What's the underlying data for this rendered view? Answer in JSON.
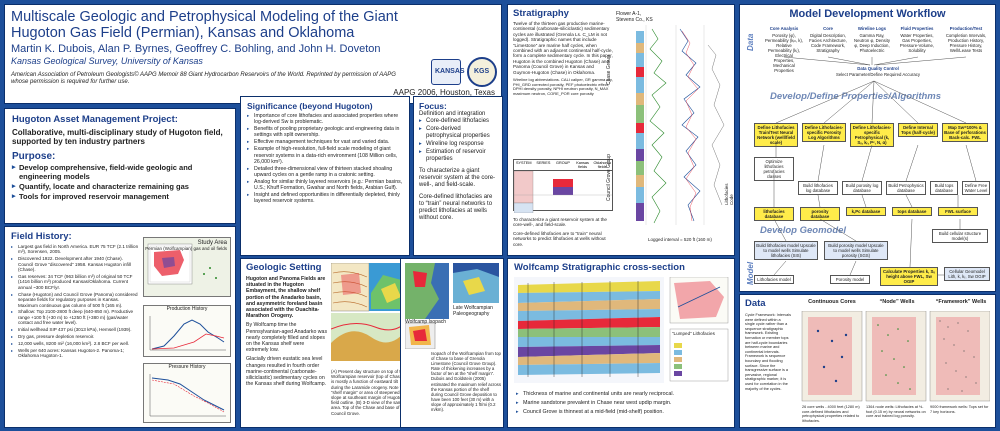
{
  "title": {
    "heading": "Multiscale Geologic and Petrophysical Modeling of the Giant Hugoton Gas Field (Permian), Kansas and Oklahoma",
    "authors": "Martin K. Dubois, Alan P. Byrnes, Geoffrey C. Bohling, and John H. Doveton",
    "institution": "Kansas Geological Survey, University of Kansas",
    "reference": "American Association of Petroleum Geologists© AAPG Memoir 88 Giant Hydrocarbon Reservoirs of the World. Reprinted by permission of AAPG whose permission is required for further use.",
    "year": "AAPG 2006, Houston, Texas",
    "logo_ks": "KANSAS",
    "logo_kgs": "KGS"
  },
  "project": {
    "heading": "Hugoton Asset Management Project:",
    "subtitle": "Collaborative, multi-disciplinary study of Hugoton field, supported by ten industry partners",
    "purpose_heading": "Purpose:",
    "purpose": [
      "Develop comprehensive, field-wide geologic and engineering models",
      "Quantify, locate and characterize remaining gas",
      "Tools for improved reservoir management"
    ]
  },
  "significance": {
    "heading": "Significance (beyond Hugoton)",
    "items": [
      "Importance of core lithofacies and associated properties where log-derived Sw is problematic.",
      "Benefits of pooling proprietary geologic and engineering data in settings with split ownership.",
      "Effective management techniques for vast and varied data.",
      "Example of high-resolution, full-field scale modeling of giant reservoir systems in a data-rich environment (108 Million cells, 26,000 km²).",
      "Detailed three-dimensional view of thirteen stacked shoaling upward cycles on a gentle ramp in a cratonic setting.",
      "Analog for similar thinly layered reservoirs (e.g.: Permian basins, U.S.; Khuff Formation, Gwahar and North fields, Arabian Gulf).",
      "Insight and defined opportunities in differentially depleted, thinly layered reservoir systems."
    ]
  },
  "focus": {
    "heading": "Focus:",
    "lead": "Definition and integration",
    "items": [
      "Core-defined lithofacies",
      "Core-derived petrophysical properties",
      "Wireline log response",
      "Estimation of reservoir properties"
    ],
    "para1": "To characterize a giant reservoir system at the core-well-, and field-scale.",
    "para2": "Core-defined lithofacies are to “train” neural networks to predict lithofacies at wells without core."
  },
  "history": {
    "heading": "Field History:",
    "items": [
      "Largest gas field in North America. EUR 75 TCF (2.1 trillion m³), Sorensen, 2005.",
      "Discovered 1922. Development after 1940 (Chase). Council Grove “discovered” 1958. Kansas Hugoton infill (Chase).",
      "Gas reserves: 34 TCF (963 billion m³) of original 50 TCF (1416 billion m³) produced Kansas/Oklahoma. Current annual ~300 BCF/yr.",
      "Chase (Hugoton) and Council Grove (Panoma) considered separate fields for regulatory purposes in Kansas. Maximum continuous gas column of 500 ft (165 m).",
      "Shallow: Top 2100-2800 ft deep (640-850 m). Productive range +100 ft (+30 m) to +1250 ft (+380 m) (gas/water contact and free water level).",
      "Initial wellhead SIP 437 psi (3013 kPa), Hemsell (1939).",
      "Dry gas, pressure depletion reservoir.",
      "12,000 wells, 8200 mi² (16,000 km²). 2.8 BCF per well.",
      "Wells per 640 acres: Kansas Hugoton-2. Panoma-1; Oklahoma Hugoton-1."
    ],
    "map_caption": "Study Area",
    "map_sub": "Permian (Wolfcampian) gas and oil fields",
    "prod_caption": "Production History",
    "press_caption": "Pressure History"
  },
  "stratigraphy": {
    "heading": "Stratigraphy",
    "para1": "Twelve of the thirteen gas productive marine-continental (carbonate-siliciclastic) sedimentary cycles are illustrated (Grenola Ls. C_LM is not logged). Stratigraphic names that include “Limestone” are marine half cycles, when combined with an adjacent continental half-cycle, form a complete sedimentary cycle. In this paper, Hugoton is the combined Hugoton (Chase) and Panoma (Council Grove) in Kansas and Guymon-Hugoton (Chase) in Oklahoma.",
    "abbreviations": "Wireline log abbreviations. CALI caliper, GR gamma ray, PHI_GRD corrected porosity, PEF photoelectric effect, DPHI density porosity, NPHI neutron porosity, N_MAX maximum neutron, CORE_POR core porosity",
    "table_headers": [
      "SYSTEM",
      "SERIES",
      "GROUP",
      "Kansas fields",
      "Oklahoma fields"
    ],
    "table_rows": [
      "Permian",
      "Chase",
      "Council Grove",
      "Admire",
      "Pennsylvanian"
    ],
    "para2": "To characterize a giant reservoir system at the core-well-, and field-scale.",
    "para3": "Core-defined lithofacies are to “train” neural networks to predict lithofacies at wells without core.",
    "well_name": "Flower A-1,",
    "well_loc": "Stevens Co., KS",
    "group_chase": "Chase Group",
    "group_cg": "Council Grove Group",
    "lith_code": "Lithofacies Code",
    "footer": "Logged interval = 520 ft (160 m)"
  },
  "geologic": {
    "heading": "Geologic Setting",
    "para1": "Hugoton and Panoma Fields are situated in the Hugoton Embayment, the shallow shelf portion of the Anadarko basin, and asymmetric foreland basin associated with the Ouachita-Marathon Orogeny.",
    "para2": "By Wolfcamp time the Pennsylvanian-aged Anadarko was nearly completely filled and slopes on the Kansas shelf were extremely low.",
    "para3": "Glacially driven eustatic sea level changes resulted in fourth order marine-continental (carbonate-siliciclastic) sedimentary cycles on the Kansas shelf during Wolfcamp.",
    "caption": "(A) Present day structure on top of the Wolfcampian reservoir (top of Chase) is mostly a function of eastward tilt during the Laramide orogeny. Note the “shelf margin” or area of steepened slope at southeast margin of Hugoton field outline. (B) 3-D view of the same area. Top of the Chase and base of Council Grove.",
    "fig_label": "Late Wolfcampian Paleogeography",
    "isopach_label": "Wolfcamp Isopach",
    "isopach_caption": "Isopach of the Wolfcampian from top of Chase to base of Grenola Limestone (Council Grove Group). Rate of thickening increases by a factor of ten at the “shelf margin”. Dubois and Goldstein (2005) estimated the maximum relief across the Kansas portion of the shelf during Council Grove deposition to have been 100 feet (30 m) with a slope of approximately 1 ft/mi (0.2 m/km)."
  },
  "wolfcamp": {
    "heading": "Wolfcamp Stratigraphic cross-section",
    "lumped_label": "“Lumped” Lithofacies",
    "items": [
      "Thickness of marine and continental units are nearly reciprocal.",
      "Marine sandstone prevalent in Chase near west updip margin.",
      "Council Grove is thinnest at a mid-field (mid-shelf) position."
    ]
  },
  "workflow": {
    "heading": "Model Development Workflow",
    "side_data": "Data",
    "side_model": "Model",
    "sec_develop_props": "Develop/Define Properties/Algorithms",
    "sec_develop_geo": "Develop Geomodel",
    "top_headers": [
      "Core Analysis",
      "Core",
      "Wireline Logs",
      "Fluid Properties",
      "Production/Test"
    ],
    "top_details": [
      "Porosity (φ), Permeability (kᵢₙ, k), Relative Permeability (kᵣ), Electrical Properties, Mechanical Properties",
      "Digital Description, Facies Architecture, Code Framework, Stratigraphy",
      "Gamma Ray, Neutron φ, Density φ, Deep Induction, Photoelectric",
      "Water Properties, Gas Properties, Pressure-Volume, Solubility",
      "Completion Intervals, Production History, Pressure History, Well/Lease Tests"
    ],
    "qc_line": "Data Quality Control",
    "qc_sub": "Select Parameter/Define Required Accuracy",
    "define_boxes": [
      "Define Lithofacies Train/Test Neural Network (well/field scale)",
      "Define Lithofacies-specific Porosity Log Algorithms",
      "Define Lithofacies-specific Petrophysical (k, Sᵥ, kᵣ, Pᶜ, N, α)",
      "Define Internal Tops (half-cycle)",
      "Map Sw=100% & Base of perforations Back-calc. FWL"
    ],
    "mid_boxes": [
      "Optimize lithofacies petrofacies classes",
      "Build lithofacies log database",
      "Build porosity log database",
      "Build Petrophysics database",
      "Build tops database",
      "Define Free Water Level"
    ],
    "db_boxes": [
      "lithofacies database",
      "porosity database",
      "k,Pc database",
      "tops database",
      "FWL surface"
    ],
    "cellular": "Build cellular structure model(s)",
    "build_boxes": [
      "Build lithofacies model Upscale to model wells Simulate lithofacies (SIS)",
      "Build porosity model Upscale to model wells Simulate porosity (SGS)"
    ],
    "calc_box": "Calculate Properties k, Sᵥ height above FWL, Sw OGIP",
    "final_boxes": [
      "Lithofacies model",
      "Porosity model",
      "Cellular Geomodel Lith, k, kᵣ, Sw OGIP"
    ]
  },
  "data": {
    "heading": "Data",
    "cols": [
      "Continuous Cores",
      "“Node” Wells",
      "“Framework” Wells"
    ],
    "text": "Cycle Framework: Intervals were defined within a single cycle rather than a sequence stratigraphic framework. Existing formation or member tops are half-cycle boundaries between marine and continental intervals. Framework is sequence boundary and flooding surface. Since the transgressive surface is a pervasive, regional stratigraphic marker, it is used for correlation in the majority of the cycles.",
    "captions": [
      "26 core wells - 4000 feet (1280 m) core-defined lithofacies and petrophysical properties related to lithofacies.",
      "1364 node wells: Lithofacies at ½-foot (0.15 m) by neural networks on core and trained log porosity.",
      "9000 framework wells: Tops set for 7 key horizons."
    ]
  },
  "colors": {
    "background": "#1d4f9a",
    "heading": "#1d3f8a",
    "workflow_yellow": "#ffec4a",
    "chase": "#e7293a",
    "council_grove": "#6a46a2"
  }
}
